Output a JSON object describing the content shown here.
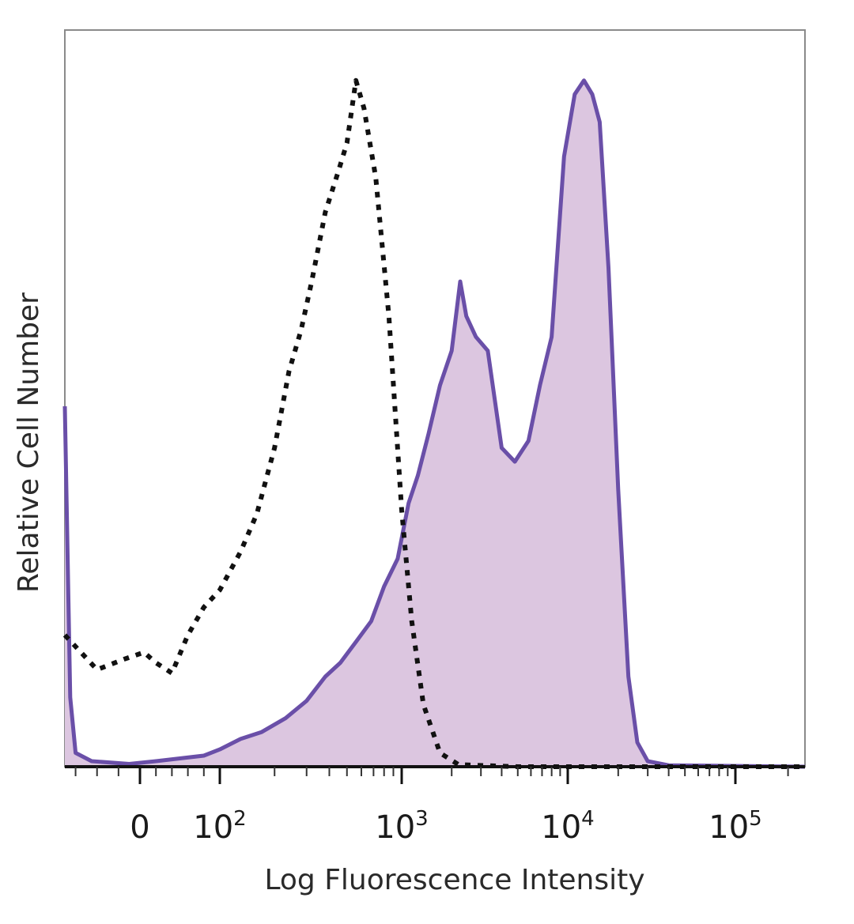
{
  "chart_data": {
    "type": "area",
    "xlabel": "Log Fluorescence Intensity",
    "ylabel": "Relative Cell Number",
    "x_scale": "biexponential (logicle)",
    "xlim": [
      -70,
      250000
    ],
    "ylim": [
      0,
      1.0
    ],
    "x_ticks": [
      {
        "value": 0,
        "base": "0",
        "exp": ""
      },
      {
        "value": 100,
        "base": "10",
        "exp": "2"
      },
      {
        "value": 1000,
        "base": "10",
        "exp": "3"
      },
      {
        "value": 10000,
        "base": "10",
        "exp": "4"
      },
      {
        "value": 100000,
        "base": "10",
        "exp": "5"
      }
    ],
    "grid": false,
    "legend": "none",
    "series": [
      {
        "style": "dotted-black-line",
        "color": "#111111",
        "points": [
          [
            -70,
            0.19
          ],
          [
            -40,
            0.14
          ],
          [
            -15,
            0.155
          ],
          [
            5,
            0.165
          ],
          [
            20,
            0.15
          ],
          [
            40,
            0.135
          ],
          [
            60,
            0.19
          ],
          [
            80,
            0.23
          ],
          [
            100,
            0.255
          ],
          [
            130,
            0.31
          ],
          [
            160,
            0.365
          ],
          [
            200,
            0.46
          ],
          [
            240,
            0.57
          ],
          [
            280,
            0.63
          ],
          [
            320,
            0.7
          ],
          [
            380,
            0.8
          ],
          [
            450,
            0.86
          ],
          [
            500,
            0.9
          ],
          [
            560,
            0.99
          ],
          [
            620,
            0.95
          ],
          [
            720,
            0.85
          ],
          [
            850,
            0.65
          ],
          [
            1000,
            0.37
          ],
          [
            1150,
            0.21
          ],
          [
            1350,
            0.09
          ],
          [
            1700,
            0.02
          ],
          [
            2200,
            0.003
          ],
          [
            5000,
            0.0
          ],
          [
            20000,
            0.0
          ],
          [
            250000,
            0.0
          ]
        ]
      },
      {
        "style": "filled-purple-line",
        "color": "#6a4fa8",
        "fill": "#dcc6e0",
        "points": [
          [
            -70,
            0.52
          ],
          [
            -65,
            0.1
          ],
          [
            -60,
            0.02
          ],
          [
            -45,
            0.008
          ],
          [
            -10,
            0.004
          ],
          [
            20,
            0.008
          ],
          [
            50,
            0.012
          ],
          [
            80,
            0.016
          ],
          [
            100,
            0.025
          ],
          [
            130,
            0.04
          ],
          [
            170,
            0.05
          ],
          [
            230,
            0.07
          ],
          [
            300,
            0.095
          ],
          [
            380,
            0.13
          ],
          [
            460,
            0.15
          ],
          [
            560,
            0.18
          ],
          [
            680,
            0.21
          ],
          [
            800,
            0.26
          ],
          [
            950,
            0.3
          ],
          [
            1100,
            0.38
          ],
          [
            1250,
            0.42
          ],
          [
            1450,
            0.48
          ],
          [
            1700,
            0.55
          ],
          [
            2000,
            0.6
          ],
          [
            2250,
            0.7
          ],
          [
            2450,
            0.65
          ],
          [
            2800,
            0.62
          ],
          [
            3300,
            0.6
          ],
          [
            4000,
            0.46
          ],
          [
            4800,
            0.44
          ],
          [
            5800,
            0.47
          ],
          [
            6800,
            0.55
          ],
          [
            8000,
            0.62
          ],
          [
            9500,
            0.88
          ],
          [
            11000,
            0.97
          ],
          [
            12500,
            0.99
          ],
          [
            14000,
            0.97
          ],
          [
            15500,
            0.93
          ],
          [
            17500,
            0.72
          ],
          [
            20000,
            0.4
          ],
          [
            23000,
            0.13
          ],
          [
            26000,
            0.035
          ],
          [
            30000,
            0.008
          ],
          [
            40000,
            0.002
          ],
          [
            250000,
            0.0
          ]
        ]
      }
    ]
  }
}
